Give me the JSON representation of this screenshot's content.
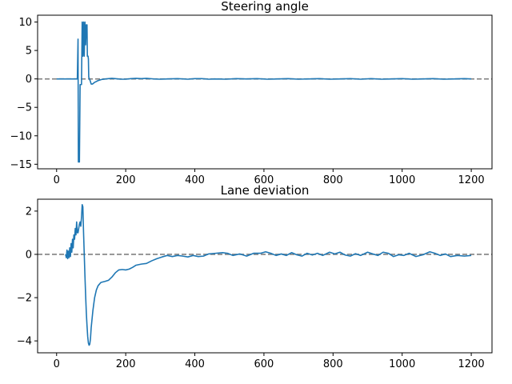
{
  "chart_data": [
    {
      "type": "line",
      "title": "Steering angle",
      "xlabel": "",
      "ylabel": "",
      "xlim": [
        -55,
        1260
      ],
      "ylim": [
        -15.8,
        11.2
      ],
      "xticks": [
        0,
        200,
        400,
        600,
        800,
        1000,
        1200
      ],
      "yticks": [
        -15,
        -10,
        -5,
        0,
        5,
        10
      ],
      "reference_line": {
        "y": 0,
        "style": "dashed",
        "color": "#808080"
      },
      "grid": false,
      "series": [
        {
          "color": "#1f77b4",
          "points": [
            [
              0,
              0
            ],
            [
              60,
              0
            ],
            [
              62,
              7
            ],
            [
              63,
              -14.6
            ],
            [
              66,
              -14.6
            ],
            [
              68,
              -1
            ],
            [
              72,
              -1
            ],
            [
              74,
              10
            ],
            [
              76,
              4
            ],
            [
              78,
              10
            ],
            [
              80,
              4
            ],
            [
              82,
              10
            ],
            [
              84,
              6
            ],
            [
              86,
              9.5
            ],
            [
              88,
              9.5
            ],
            [
              89,
              4
            ],
            [
              91,
              4
            ],
            [
              92,
              3.5
            ],
            [
              93,
              0.3
            ],
            [
              95,
              0
            ],
            [
              97,
              -0.3
            ],
            [
              100,
              -0.9
            ],
            [
              104,
              -0.9
            ],
            [
              110,
              -0.6
            ],
            [
              120,
              -0.3
            ],
            [
              130,
              -0.1
            ],
            [
              150,
              0.05
            ],
            [
              160,
              0.1
            ],
            [
              170,
              0.05
            ],
            [
              185,
              -0.05
            ],
            [
              200,
              -0.05
            ],
            [
              215,
              0.05
            ],
            [
              230,
              0.1
            ],
            [
              245,
              0.05
            ],
            [
              260,
              0.1
            ],
            [
              280,
              0
            ],
            [
              300,
              -0.05
            ],
            [
              320,
              0
            ],
            [
              350,
              0.05
            ],
            [
              380,
              -0.05
            ],
            [
              400,
              0.05
            ],
            [
              420,
              0.05
            ],
            [
              440,
              -0.05
            ],
            [
              460,
              0
            ],
            [
              490,
              -0.05
            ],
            [
              520,
              0.05
            ],
            [
              550,
              0
            ],
            [
              580,
              0.05
            ],
            [
              610,
              -0.05
            ],
            [
              640,
              0
            ],
            [
              670,
              0.05
            ],
            [
              700,
              -0.05
            ],
            [
              730,
              0
            ],
            [
              760,
              0.05
            ],
            [
              790,
              -0.05
            ],
            [
              820,
              0
            ],
            [
              850,
              0.05
            ],
            [
              880,
              -0.05
            ],
            [
              910,
              0.05
            ],
            [
              940,
              -0.05
            ],
            [
              970,
              0
            ],
            [
              1000,
              0.05
            ],
            [
              1030,
              -0.05
            ],
            [
              1060,
              0
            ],
            [
              1090,
              0.05
            ],
            [
              1120,
              -0.05
            ],
            [
              1150,
              0
            ],
            [
              1180,
              0.05
            ],
            [
              1200,
              0
            ]
          ]
        }
      ]
    },
    {
      "type": "line",
      "title": "Lane deviation",
      "xlabel": "",
      "ylabel": "",
      "xlim": [
        -55,
        1260
      ],
      "ylim": [
        -4.55,
        2.55
      ],
      "xticks": [
        0,
        200,
        400,
        600,
        800,
        1000,
        1200
      ],
      "yticks": [
        -4,
        -2,
        0,
        2
      ],
      "reference_line": {
        "y": 0,
        "style": "dashed",
        "color": "#808080"
      },
      "grid": false,
      "series": [
        {
          "color": "#1f77b4",
          "points": [
            [
              26,
              0
            ],
            [
              28,
              -0.15
            ],
            [
              30,
              0.2
            ],
            [
              32,
              -0.2
            ],
            [
              34,
              0.15
            ],
            [
              36,
              -0.15
            ],
            [
              38,
              0.3
            ],
            [
              40,
              -0.1
            ],
            [
              42,
              0.5
            ],
            [
              44,
              0.1
            ],
            [
              46,
              0.7
            ],
            [
              48,
              0.3
            ],
            [
              50,
              0.9
            ],
            [
              52,
              0.7
            ],
            [
              54,
              1.2
            ],
            [
              56,
              0.9
            ],
            [
              58,
              1.5
            ],
            [
              60,
              1.0
            ],
            [
              62,
              1.0
            ],
            [
              64,
              1.2
            ],
            [
              66,
              1.4
            ],
            [
              68,
              1.5
            ],
            [
              70,
              1.3
            ],
            [
              72,
              1.7
            ],
            [
              74,
              2.3
            ],
            [
              76,
              2.2
            ],
            [
              78,
              1.0
            ],
            [
              80,
              0
            ],
            [
              82,
              -1.0
            ],
            [
              84,
              -1.9
            ],
            [
              86,
              -2.7
            ],
            [
              88,
              -3.3
            ],
            [
              90,
              -3.8
            ],
            [
              92,
              -4.1
            ],
            [
              94,
              -4.2
            ],
            [
              96,
              -4.15
            ],
            [
              98,
              -3.9
            ],
            [
              100,
              -3.4
            ],
            [
              105,
              -2.6
            ],
            [
              110,
              -2.0
            ],
            [
              115,
              -1.65
            ],
            [
              120,
              -1.45
            ],
            [
              128,
              -1.3
            ],
            [
              140,
              -1.25
            ],
            [
              150,
              -1.2
            ],
            [
              160,
              -1.05
            ],
            [
              170,
              -0.85
            ],
            [
              180,
              -0.72
            ],
            [
              190,
              -0.7
            ],
            [
              200,
              -0.72
            ],
            [
              210,
              -0.68
            ],
            [
              220,
              -0.6
            ],
            [
              230,
              -0.5
            ],
            [
              245,
              -0.45
            ],
            [
              260,
              -0.42
            ],
            [
              275,
              -0.3
            ],
            [
              290,
              -0.2
            ],
            [
              305,
              -0.12
            ],
            [
              320,
              -0.05
            ],
            [
              335,
              -0.1
            ],
            [
              350,
              -0.05
            ],
            [
              365,
              -0.08
            ],
            [
              380,
              -0.12
            ],
            [
              395,
              -0.05
            ],
            [
              410,
              -0.1
            ],
            [
              425,
              -0.08
            ],
            [
              440,
              0.02
            ],
            [
              460,
              0.05
            ],
            [
              480,
              0.08
            ],
            [
              495,
              0.05
            ],
            [
              510,
              -0.05
            ],
            [
              530,
              0.02
            ],
            [
              550,
              -0.08
            ],
            [
              570,
              0.05
            ],
            [
              590,
              0.05
            ],
            [
              605,
              0.12
            ],
            [
              620,
              0.05
            ],
            [
              635,
              -0.05
            ],
            [
              650,
              0.02
            ],
            [
              665,
              -0.05
            ],
            [
              680,
              0.08
            ],
            [
              695,
              -0.02
            ],
            [
              710,
              -0.08
            ],
            [
              725,
              0.05
            ],
            [
              740,
              -0.03
            ],
            [
              755,
              0.05
            ],
            [
              770,
              -0.05
            ],
            [
              790,
              0.1
            ],
            [
              805,
              0.02
            ],
            [
              820,
              0.1
            ],
            [
              835,
              -0.03
            ],
            [
              850,
              -0.08
            ],
            [
              865,
              0.03
            ],
            [
              880,
              -0.05
            ],
            [
              900,
              0.1
            ],
            [
              915,
              0.02
            ],
            [
              930,
              -0.05
            ],
            [
              945,
              0.1
            ],
            [
              960,
              0.05
            ],
            [
              975,
              -0.1
            ],
            [
              990,
              -0.02
            ],
            [
              1005,
              -0.05
            ],
            [
              1020,
              0.05
            ],
            [
              1040,
              -0.1
            ],
            [
              1060,
              -0.02
            ],
            [
              1080,
              0.12
            ],
            [
              1095,
              0.05
            ],
            [
              1110,
              -0.05
            ],
            [
              1125,
              0.02
            ],
            [
              1140,
              -0.1
            ],
            [
              1160,
              -0.05
            ],
            [
              1180,
              -0.08
            ],
            [
              1200,
              -0.05
            ]
          ]
        }
      ]
    }
  ]
}
